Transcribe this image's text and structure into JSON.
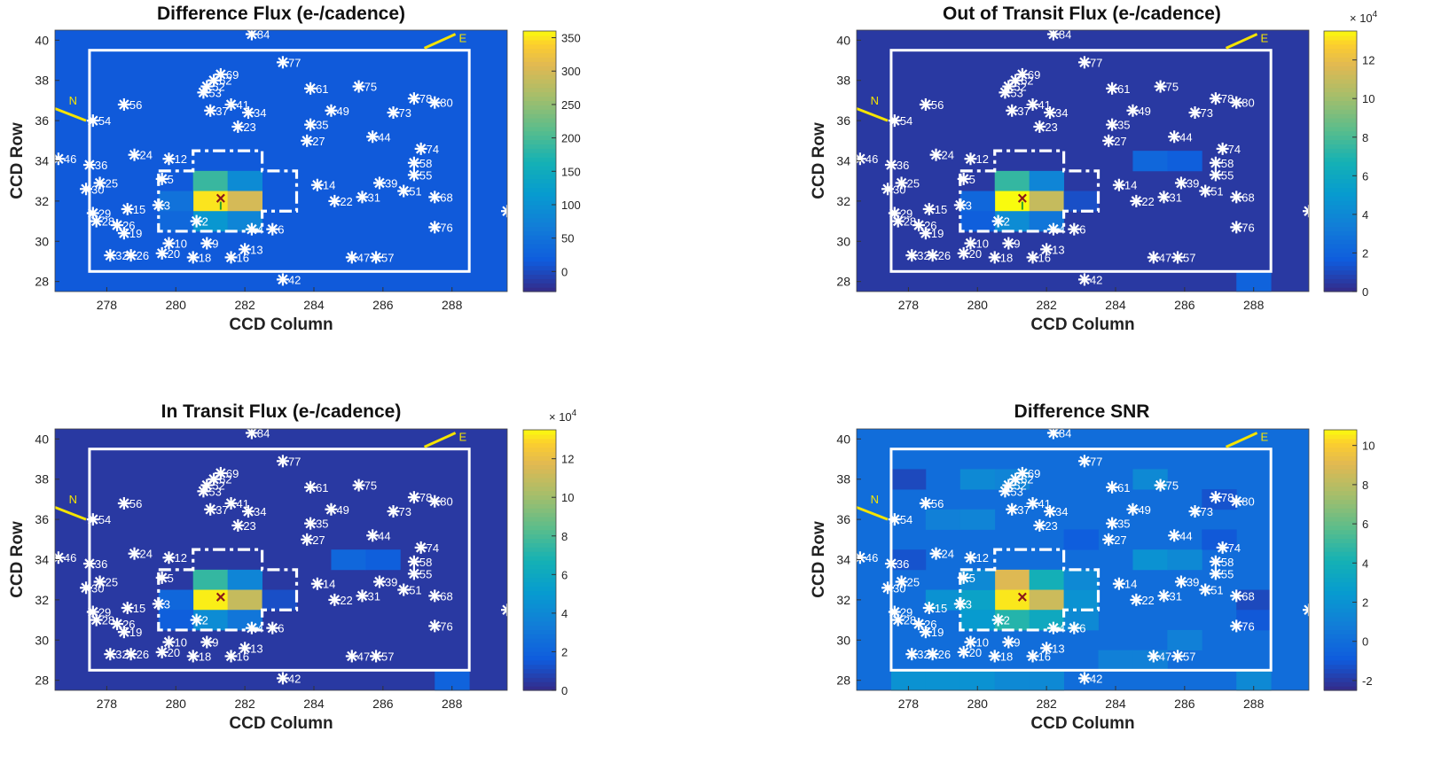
{
  "chart_data": [
    {
      "type": "heatmap",
      "title": "Difference Flux (e-/cadence)",
      "xlabel": "CCD Column",
      "ylabel": "CCD Row",
      "xlim": [
        276.5,
        289.6
      ],
      "ylim": [
        27.5,
        40.5
      ],
      "x_ticks": [
        278,
        280,
        282,
        284,
        286,
        288
      ],
      "y_ticks": [
        28,
        30,
        32,
        34,
        36,
        38,
        40
      ],
      "colorbar": {
        "range": [
          -30,
          360
        ],
        "ticks": [
          0,
          50,
          100,
          150,
          200,
          250,
          300,
          350
        ],
        "multiplier": ""
      },
      "background_level": 15,
      "pixels": [
        {
          "col": 281,
          "row": 33,
          "value": 190
        },
        {
          "col": 282,
          "row": 33,
          "value": 90
        },
        {
          "col": 281,
          "row": 32,
          "value": 350
        },
        {
          "col": 282,
          "row": 32,
          "value": 300
        },
        {
          "col": 281,
          "row": 31,
          "value": 110
        },
        {
          "col": 282,
          "row": 31,
          "value": 80
        },
        {
          "col": 280,
          "row": 32,
          "value": 50
        },
        {
          "col": 280,
          "row": 31,
          "value": 35
        }
      ]
    },
    {
      "type": "heatmap",
      "title": "Out of Transit Flux (e-/cadence)",
      "xlabel": "CCD Column",
      "ylabel": "CCD Row",
      "xlim": [
        276.5,
        289.6
      ],
      "ylim": [
        27.5,
        40.5
      ],
      "x_ticks": [
        278,
        280,
        282,
        284,
        286,
        288
      ],
      "y_ticks": [
        28,
        30,
        32,
        34,
        36,
        38,
        40
      ],
      "colorbar": {
        "range": [
          0,
          13.5
        ],
        "ticks": [
          0,
          2,
          4,
          6,
          8,
          10,
          12
        ],
        "multiplier": "× 10^4"
      },
      "background_level": 0.5,
      "pixels": [
        {
          "col": 281,
          "row": 33,
          "value": 7.5
        },
        {
          "col": 282,
          "row": 33,
          "value": 3.8
        },
        {
          "col": 281,
          "row": 32,
          "value": 13.5
        },
        {
          "col": 282,
          "row": 32,
          "value": 11
        },
        {
          "col": 281,
          "row": 31,
          "value": 4.2
        },
        {
          "col": 282,
          "row": 31,
          "value": 3
        },
        {
          "col": 280,
          "row": 32,
          "value": 2.2
        },
        {
          "col": 280,
          "row": 31,
          "value": 1.8
        },
        {
          "col": 283,
          "row": 32,
          "value": 1.2
        },
        {
          "col": 285,
          "row": 34,
          "value": 2.2
        },
        {
          "col": 286,
          "row": 34,
          "value": 1.8
        },
        {
          "col": 288,
          "row": 28,
          "value": 2
        }
      ]
    },
    {
      "type": "heatmap",
      "title": "In Transit Flux (e-/cadence)",
      "xlabel": "CCD Column",
      "ylabel": "CCD Row",
      "xlim": [
        276.5,
        289.6
      ],
      "ylim": [
        27.5,
        40.5
      ],
      "x_ticks": [
        278,
        280,
        282,
        284,
        286,
        288
      ],
      "y_ticks": [
        28,
        30,
        32,
        34,
        36,
        38,
        40
      ],
      "colorbar": {
        "range": [
          0,
          13.5
        ],
        "ticks": [
          0,
          2,
          4,
          6,
          8,
          10,
          12
        ],
        "multiplier": "× 10^4"
      },
      "background_level": 0.5,
      "pixels": [
        {
          "col": 281,
          "row": 33,
          "value": 7.5
        },
        {
          "col": 282,
          "row": 33,
          "value": 3.8
        },
        {
          "col": 281,
          "row": 32,
          "value": 13.3
        },
        {
          "col": 282,
          "row": 32,
          "value": 11
        },
        {
          "col": 281,
          "row": 31,
          "value": 4.2
        },
        {
          "col": 282,
          "row": 31,
          "value": 3
        },
        {
          "col": 280,
          "row": 32,
          "value": 2.2
        },
        {
          "col": 280,
          "row": 31,
          "value": 1.8
        },
        {
          "col": 283,
          "row": 32,
          "value": 1.2
        },
        {
          "col": 285,
          "row": 34,
          "value": 2.2
        },
        {
          "col": 286,
          "row": 34,
          "value": 1.8
        },
        {
          "col": 288,
          "row": 28,
          "value": 2
        }
      ]
    },
    {
      "type": "heatmap",
      "title": "Difference SNR",
      "xlabel": "CCD Column",
      "ylabel": "CCD Row",
      "xlim": [
        276.5,
        289.6
      ],
      "ylim": [
        27.5,
        40.5
      ],
      "x_ticks": [
        278,
        280,
        282,
        284,
        286,
        288
      ],
      "y_ticks": [
        28,
        30,
        32,
        34,
        36,
        38,
        40
      ],
      "colorbar": {
        "range": [
          -2.5,
          10.8
        ],
        "ticks": [
          -2,
          0,
          2,
          4,
          6,
          8,
          10
        ],
        "multiplier": ""
      },
      "background_level": 0,
      "pixels": [
        {
          "col": 281,
          "row": 33,
          "value": 9
        },
        {
          "col": 282,
          "row": 33,
          "value": 4
        },
        {
          "col": 281,
          "row": 32,
          "value": 10.5
        },
        {
          "col": 282,
          "row": 32,
          "value": 8.5
        },
        {
          "col": 281,
          "row": 31,
          "value": 4.5
        },
        {
          "col": 282,
          "row": 31,
          "value": 3.5
        },
        {
          "col": 280,
          "row": 32,
          "value": 3
        },
        {
          "col": 280,
          "row": 31,
          "value": 2.5
        },
        {
          "col": 279,
          "row": 32,
          "value": 2
        },
        {
          "col": 283,
          "row": 32,
          "value": 2
        },
        {
          "col": 283,
          "row": 33,
          "value": 1.5
        },
        {
          "col": 280,
          "row": 33,
          "value": 1.5
        },
        {
          "col": 283,
          "row": 31,
          "value": 1.5
        },
        {
          "col": 278,
          "row": 28,
          "value": 2
        },
        {
          "col": 279,
          "row": 28,
          "value": 2
        },
        {
          "col": 280,
          "row": 28,
          "value": 2
        },
        {
          "col": 281,
          "row": 28,
          "value": 1.5
        },
        {
          "col": 282,
          "row": 28,
          "value": 1.5
        },
        {
          "col": 285,
          "row": 34,
          "value": 2
        },
        {
          "col": 286,
          "row": 34,
          "value": 1.5
        },
        {
          "col": 285,
          "row": 38,
          "value": 1.5
        },
        {
          "col": 280,
          "row": 38,
          "value": 1.5
        },
        {
          "col": 281,
          "row": 38,
          "value": 1.2
        },
        {
          "col": 278,
          "row": 38,
          "value": -1.5
        },
        {
          "col": 279,
          "row": 36,
          "value": 1
        },
        {
          "col": 280,
          "row": 36,
          "value": 1.2
        },
        {
          "col": 278,
          "row": 34,
          "value": -1.2
        },
        {
          "col": 287,
          "row": 35,
          "value": -1
        },
        {
          "col": 288,
          "row": 32,
          "value": -1.5
        },
        {
          "col": 288,
          "row": 31,
          "value": -1
        },
        {
          "col": 287,
          "row": 37,
          "value": -1.2
        },
        {
          "col": 286,
          "row": 30,
          "value": 1
        },
        {
          "col": 284,
          "row": 29,
          "value": 1
        },
        {
          "col": 285,
          "row": 29,
          "value": 1
        },
        {
          "col": 288,
          "row": 28,
          "value": 1.5
        },
        {
          "col": 283,
          "row": 35,
          "value": -0.8
        }
      ]
    }
  ],
  "target_marker": {
    "col": 281.3,
    "row": 32.1,
    "symbol": "×"
  },
  "compass": {
    "north_label": "N",
    "east_label": "E"
  },
  "stars": [
    {
      "label": "84",
      "col": 282.2,
      "row": 40.3
    },
    {
      "label": "77",
      "col": 283.1,
      "row": 38.9
    },
    {
      "label": "69",
      "col": 281.3,
      "row": 38.3
    },
    {
      "label": "62",
      "col": 281.1,
      "row": 38.0
    },
    {
      "label": "52",
      "col": 280.9,
      "row": 37.7
    },
    {
      "label": "53",
      "col": 280.8,
      "row": 37.4
    },
    {
      "label": "61",
      "col": 283.9,
      "row": 37.6
    },
    {
      "label": "75",
      "col": 285.3,
      "row": 37.7
    },
    {
      "label": "78",
      "col": 286.9,
      "row": 37.1
    },
    {
      "label": "80",
      "col": 287.5,
      "row": 36.9
    },
    {
      "label": "56",
      "col": 278.5,
      "row": 36.8
    },
    {
      "label": "41",
      "col": 281.6,
      "row": 36.8
    },
    {
      "label": "37",
      "col": 281.0,
      "row": 36.5
    },
    {
      "label": "34",
      "col": 282.1,
      "row": 36.4
    },
    {
      "label": "49",
      "col": 284.5,
      "row": 36.5
    },
    {
      "label": "73",
      "col": 286.3,
      "row": 36.4
    },
    {
      "label": "54",
      "col": 277.6,
      "row": 36.0
    },
    {
      "label": "35",
      "col": 283.9,
      "row": 35.8
    },
    {
      "label": "23",
      "col": 281.8,
      "row": 35.7
    },
    {
      "label": "27",
      "col": 283.8,
      "row": 35.0
    },
    {
      "label": "44",
      "col": 285.7,
      "row": 35.2
    },
    {
      "label": "74",
      "col": 287.1,
      "row": 34.6
    },
    {
      "label": "24",
      "col": 278.8,
      "row": 34.3
    },
    {
      "label": "12",
      "col": 279.8,
      "row": 34.1
    },
    {
      "label": "46",
      "col": 276.6,
      "row": 34.1
    },
    {
      "label": "36",
      "col": 277.5,
      "row": 33.8
    },
    {
      "label": "58",
      "col": 286.9,
      "row": 33.9
    },
    {
      "label": "5",
      "col": 279.6,
      "row": 33.1
    },
    {
      "label": "25",
      "col": 277.8,
      "row": 32.9
    },
    {
      "label": "55",
      "col": 286.9,
      "row": 33.3
    },
    {
      "label": "14",
      "col": 284.1,
      "row": 32.8
    },
    {
      "label": "39",
      "col": 285.9,
      "row": 32.9
    },
    {
      "label": "51",
      "col": 286.6,
      "row": 32.5
    },
    {
      "label": "30",
      "col": 277.4,
      "row": 32.6
    },
    {
      "label": "3",
      "col": 279.5,
      "row": 31.8
    },
    {
      "label": "22",
      "col": 284.6,
      "row": 32.0
    },
    {
      "label": "31",
      "col": 285.4,
      "row": 32.2
    },
    {
      "label": "68",
      "col": 287.5,
      "row": 32.2
    },
    {
      "label": "29",
      "col": 277.6,
      "row": 31.4
    },
    {
      "label": "15",
      "col": 278.6,
      "row": 31.6
    },
    {
      "label": "28",
      "col": 277.7,
      "row": 31.0
    },
    {
      "label": "2",
      "col": 280.6,
      "row": 31.0
    },
    {
      "label": "26",
      "col": 278.3,
      "row": 30.8
    },
    {
      "label": "19",
      "col": 278.5,
      "row": 30.4
    },
    {
      "label": "4",
      "col": 282.2,
      "row": 30.6
    },
    {
      "label": "6",
      "col": 282.8,
      "row": 30.6
    },
    {
      "label": "76",
      "col": 287.5,
      "row": 30.7
    },
    {
      "label": "10",
      "col": 279.8,
      "row": 29.9
    },
    {
      "label": "9",
      "col": 280.9,
      "row": 29.9
    },
    {
      "label": "13",
      "col": 282.0,
      "row": 29.6
    },
    {
      "label": "20",
      "col": 279.6,
      "row": 29.4
    },
    {
      "label": "32",
      "col": 278.1,
      "row": 29.3
    },
    {
      "label": "26",
      "col": 278.7,
      "row": 29.3
    },
    {
      "label": "18",
      "col": 280.5,
      "row": 29.2
    },
    {
      "label": "16",
      "col": 281.6,
      "row": 29.2
    },
    {
      "label": "47",
      "col": 285.1,
      "row": 29.2
    },
    {
      "label": "57",
      "col": 285.8,
      "row": 29.2
    },
    {
      "label": "42",
      "col": 283.1,
      "row": 28.1
    },
    {
      "label": "",
      "col": 289.6,
      "row": 31.5
    }
  ]
}
